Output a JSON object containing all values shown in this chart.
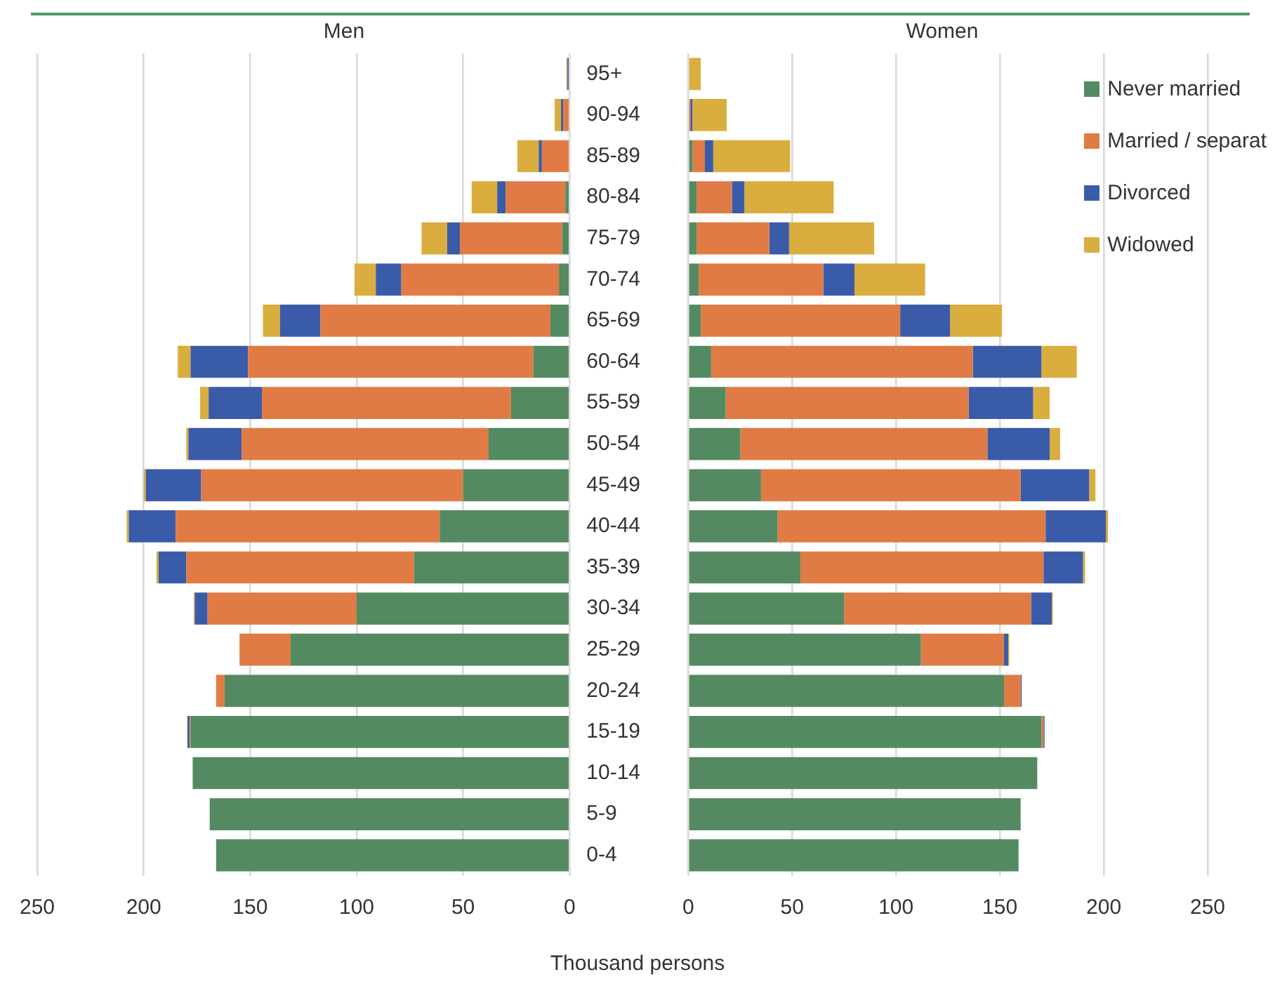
{
  "chart_data": [
    {
      "type": "bar",
      "title": "Men",
      "xlabel": "Thousand persons",
      "orientation": "horizontal",
      "stacked": true,
      "categories": [
        "95+",
        "90-94",
        "85-89",
        "80-84",
        "75-79",
        "70-74",
        "65-69",
        "60-64",
        "55-59",
        "50-54",
        "45-49",
        "40-44",
        "35-39",
        "30-34",
        "25-29",
        "20-24",
        "15-19",
        "10-14",
        "5-9",
        "0-4"
      ],
      "series": [
        {
          "color": "#548a61",
          "values": [
            0,
            null,
            null,
            2,
            3.5,
            5,
            9,
            17,
            27.5,
            38,
            50,
            61,
            73,
            100,
            131,
            162,
            178,
            177,
            169,
            166
          ]
        },
        {
          "color": "#e07b45",
          "values": [
            null,
            3,
            13,
            28,
            48,
            74,
            108,
            134,
            117,
            116,
            123,
            124,
            107,
            70,
            24,
            4,
            0.5,
            0,
            0,
            0
          ]
        },
        {
          "color": "#3a5ba8",
          "values": [
            1,
            1,
            1.5,
            4,
            6,
            12,
            19,
            27,
            25,
            25,
            26,
            22,
            13,
            6,
            0,
            0,
            1,
            0,
            0,
            0
          ]
        },
        {
          "color": "#d9ad3e",
          "values": [
            0.5,
            3,
            10,
            12,
            12,
            10,
            8,
            6,
            4,
            1,
            1,
            1,
            1,
            0.5,
            0,
            0,
            0,
            0,
            0,
            0
          ]
        }
      ],
      "xlim": [
        250,
        0
      ],
      "xticks": [
        250,
        200,
        150,
        100,
        50,
        0
      ],
      "grid": "x"
    },
    {
      "type": "bar",
      "title": "Women",
      "orientation": "horizontal",
      "stacked": true,
      "categories": [
        null,
        null,
        null,
        null,
        null,
        null,
        null,
        null,
        null,
        null,
        null,
        null,
        null,
        null,
        null,
        null,
        null,
        null,
        null,
        null
      ],
      "series": [
        {
          "name": "Never married",
          "color": "#548a61",
          "values": [
            0,
            null,
            2,
            4,
            4,
            5,
            6,
            11,
            18,
            25,
            35,
            43,
            54,
            75,
            112,
            152,
            170,
            168,
            160,
            159
          ]
        },
        {
          "name": "Married / separat",
          "color": "#e07b45",
          "values": [
            0,
            1,
            6,
            17,
            35,
            60,
            96,
            126,
            117,
            119,
            125,
            129,
            117,
            90,
            40,
            8,
            1,
            0,
            0,
            0
          ]
        },
        {
          "name": "Divorced",
          "color": "#3a5ba8",
          "values": [
            0,
            1,
            4,
            6,
            9.5,
            15,
            24,
            33,
            31,
            30,
            33,
            29,
            19,
            10,
            2,
            0.5,
            0.5,
            0,
            0,
            0
          ]
        },
        {
          "name": "Widowed",
          "color": "#d9ad3e",
          "values": [
            6,
            16.5,
            37,
            43,
            41,
            34,
            25,
            17,
            8,
            5,
            3,
            1,
            1,
            0.5,
            0.5,
            0,
            0,
            0,
            0,
            0
          ]
        }
      ],
      "xlim": [
        0,
        250
      ],
      "xticks": [
        0,
        50,
        100,
        150,
        200,
        250
      ],
      "grid": "x",
      "legend": "top right",
      "tick_labels": "x"
    }
  ]
}
